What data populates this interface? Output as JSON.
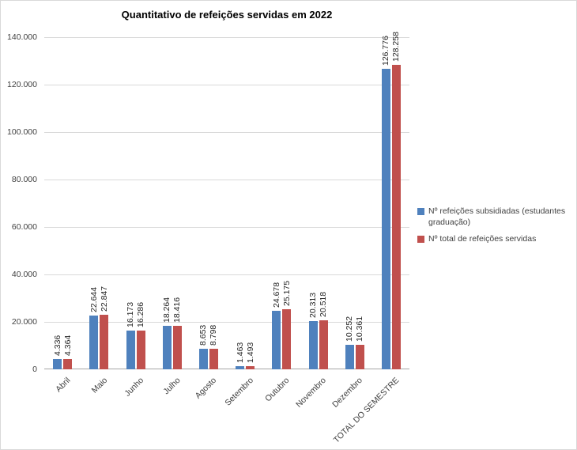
{
  "title": "Quantitativo de refeições servidas em 2022",
  "colors": {
    "series1": "#4F81BD",
    "series2": "#C0504D",
    "gridline": "#D9D9D9",
    "axis": "#A6A6A6",
    "text": "#3F3F3F"
  },
  "legend": {
    "entries": [
      {
        "label": "Nº refeições subsidiadas (estudantes graduação)",
        "color": "#4F81BD"
      },
      {
        "label": "Nº total de refeições servidas",
        "color": "#C0504D"
      }
    ]
  },
  "chart_data": {
    "type": "bar",
    "title": "Quantitativo de refeições servidas em 2022",
    "categories": [
      "Abril",
      "Maio",
      "Junho",
      "Julho",
      "Agosto",
      "Setembro",
      "Outubro",
      "Novembro",
      "Dezembro",
      "TOTAL DO SEMESTRE"
    ],
    "series": [
      {
        "name": "Nº refeições subsidiadas (estudantes graduação)",
        "color": "#4F81BD",
        "values": [
          4336,
          22644,
          16173,
          18264,
          8653,
          1463,
          24678,
          20313,
          10252,
          126776
        ],
        "value_labels": [
          "4.336",
          "22.644",
          "16.173",
          "18.264",
          "8.653",
          "1.463",
          "24.678",
          "20.313",
          "10.252",
          "126.776"
        ]
      },
      {
        "name": "Nº total de refeições servidas",
        "color": "#C0504D",
        "values": [
          4364,
          22847,
          16286,
          18416,
          8798,
          1493,
          25175,
          20518,
          10361,
          128258
        ],
        "value_labels": [
          "4.364",
          "22.847",
          "16.286",
          "18.416",
          "8.798",
          "1.493",
          "25.175",
          "20.518",
          "10.361",
          "128.258"
        ]
      }
    ],
    "y_axis": {
      "min": 0,
      "max": 140000,
      "tick_interval": 20000,
      "tick_labels": [
        "0",
        "20.000",
        "40.000",
        "60.000",
        "80.000",
        "100.000",
        "120.000",
        "140.000"
      ]
    },
    "xlabel": "",
    "ylabel": "",
    "grid": true,
    "legend_position": "right"
  }
}
